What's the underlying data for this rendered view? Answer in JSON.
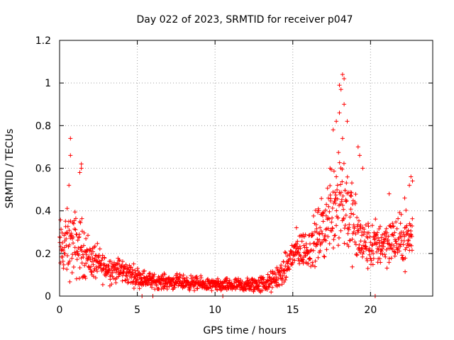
{
  "chart_data": {
    "type": "scatter",
    "title": "Day 022 of 2023, SRMTID for receiver p047",
    "xlabel": "GPS time / hours",
    "ylabel": "SRMTID / TECUs",
    "xlim": [
      0,
      24
    ],
    "ylim": [
      0,
      1.2
    ],
    "x_ticks": [
      0,
      5,
      10,
      15,
      20
    ],
    "y_ticks": [
      0,
      0.2,
      0.4,
      0.6,
      0.8,
      1,
      1.2
    ],
    "x_tick_labels": [
      "0",
      "5",
      "10",
      "15",
      "20"
    ],
    "y_tick_labels": [
      "0",
      "0.2",
      "0.4",
      "0.6",
      "0.8",
      "1",
      "1.2"
    ],
    "grid": true,
    "marker": "+",
    "marker_color": "#ff0000",
    "series": [
      {
        "name": "SRMTID",
        "profile": [
          {
            "x": 0.0,
            "y": 0.22,
            "spread": 0.12
          },
          {
            "x": 0.5,
            "y": 0.24,
            "spread": 0.14
          },
          {
            "x": 1.0,
            "y": 0.24,
            "spread": 0.14
          },
          {
            "x": 1.5,
            "y": 0.22,
            "spread": 0.12
          },
          {
            "x": 2.0,
            "y": 0.17,
            "spread": 0.08
          },
          {
            "x": 3.0,
            "y": 0.13,
            "spread": 0.06
          },
          {
            "x": 4.0,
            "y": 0.12,
            "spread": 0.05
          },
          {
            "x": 5.0,
            "y": 0.09,
            "spread": 0.04
          },
          {
            "x": 6.0,
            "y": 0.07,
            "spread": 0.03
          },
          {
            "x": 8.0,
            "y": 0.065,
            "spread": 0.03
          },
          {
            "x": 10.0,
            "y": 0.05,
            "spread": 0.025
          },
          {
            "x": 12.0,
            "y": 0.05,
            "spread": 0.03
          },
          {
            "x": 13.5,
            "y": 0.06,
            "spread": 0.04
          },
          {
            "x": 14.5,
            "y": 0.12,
            "spread": 0.06
          },
          {
            "x": 15.0,
            "y": 0.2,
            "spread": 0.08
          },
          {
            "x": 15.5,
            "y": 0.22,
            "spread": 0.08
          },
          {
            "x": 16.0,
            "y": 0.22,
            "spread": 0.08
          },
          {
            "x": 17.0,
            "y": 0.32,
            "spread": 0.14
          },
          {
            "x": 17.5,
            "y": 0.42,
            "spread": 0.18
          },
          {
            "x": 18.0,
            "y": 0.5,
            "spread": 0.28
          },
          {
            "x": 18.5,
            "y": 0.42,
            "spread": 0.2
          },
          {
            "x": 19.0,
            "y": 0.3,
            "spread": 0.16
          },
          {
            "x": 19.5,
            "y": 0.25,
            "spread": 0.1
          },
          {
            "x": 20.0,
            "y": 0.23,
            "spread": 0.1
          },
          {
            "x": 21.0,
            "y": 0.26,
            "spread": 0.1
          },
          {
            "x": 22.0,
            "y": 0.26,
            "spread": 0.1
          },
          {
            "x": 22.7,
            "y": 0.28,
            "spread": 0.12
          }
        ],
        "points_per_hour": 60,
        "highlights": [
          [
            0.7,
            0.74
          ],
          [
            0.7,
            0.66
          ],
          [
            1.4,
            0.62
          ],
          [
            1.4,
            0.6
          ],
          [
            1.3,
            0.58
          ],
          [
            0.6,
            0.52
          ],
          [
            18.2,
            1.04
          ],
          [
            18.3,
            1.02
          ],
          [
            18.0,
            0.99
          ],
          [
            18.1,
            0.97
          ],
          [
            18.3,
            0.9
          ],
          [
            18.0,
            0.86
          ],
          [
            17.8,
            0.82
          ],
          [
            18.5,
            0.82
          ],
          [
            17.6,
            0.78
          ],
          [
            18.2,
            0.74
          ],
          [
            17.4,
            0.6
          ],
          [
            17.8,
            0.56
          ],
          [
            19.3,
            0.66
          ],
          [
            19.2,
            0.7
          ],
          [
            19.5,
            0.6
          ],
          [
            22.6,
            0.56
          ],
          [
            22.7,
            0.54
          ],
          [
            22.5,
            0.52
          ],
          [
            21.2,
            0.48
          ],
          [
            22.2,
            0.46
          ],
          [
            5.3,
            0.0
          ],
          [
            6.0,
            0.0
          ],
          [
            10.5,
            0.0
          ],
          [
            20.3,
            0.0
          ]
        ]
      }
    ]
  }
}
